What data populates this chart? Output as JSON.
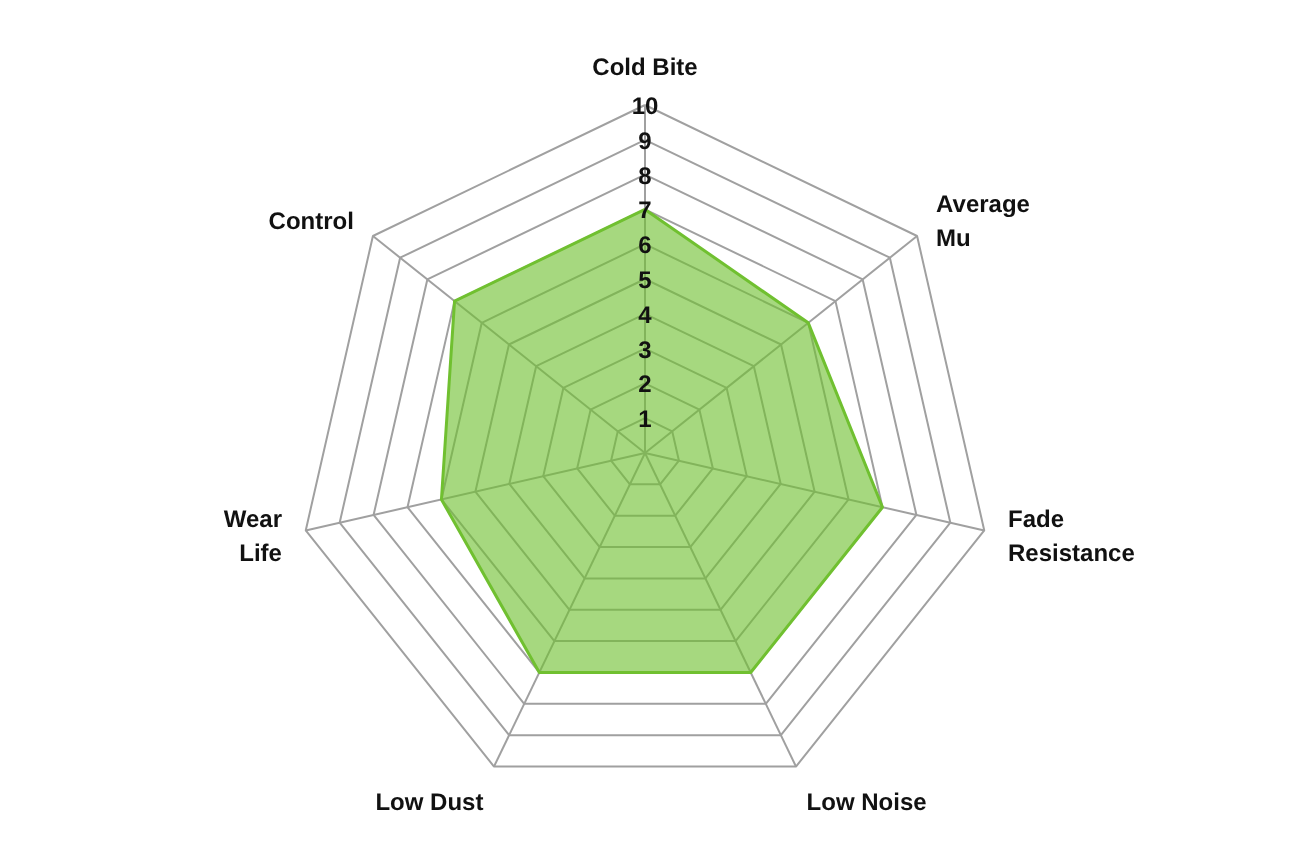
{
  "chart_data": {
    "type": "radar",
    "categories": [
      "Cold Bite",
      "Average\nMu",
      "Fade\nResistance",
      "Low Noise",
      "Low Dust",
      "Wear\nLife",
      "Control"
    ],
    "series": [
      {
        "color": "#70c030",
        "values": [
          7,
          6,
          7,
          7,
          7,
          6,
          7
        ]
      }
    ],
    "ylim": [
      0,
      10
    ],
    "yticks": [
      1,
      2,
      3,
      4,
      5,
      6,
      7,
      8,
      9,
      10
    ],
    "grid": true
  }
}
